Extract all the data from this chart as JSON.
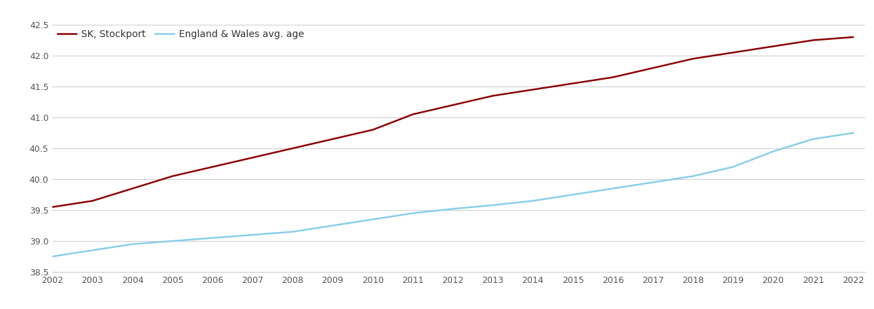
{
  "years": [
    2002,
    2003,
    2004,
    2005,
    2006,
    2007,
    2008,
    2009,
    2010,
    2011,
    2012,
    2013,
    2014,
    2015,
    2016,
    2017,
    2018,
    2019,
    2020,
    2021,
    2022
  ],
  "stockport": [
    39.55,
    39.65,
    39.85,
    40.05,
    40.2,
    40.35,
    40.5,
    40.65,
    40.8,
    41.05,
    41.2,
    41.35,
    41.45,
    41.55,
    41.65,
    41.8,
    41.95,
    42.05,
    42.15,
    42.25,
    42.3
  ],
  "england_wales": [
    38.75,
    38.85,
    38.95,
    39.0,
    39.05,
    39.1,
    39.15,
    39.25,
    39.35,
    39.45,
    39.52,
    39.58,
    39.65,
    39.75,
    39.85,
    39.95,
    40.05,
    40.2,
    40.45,
    40.65,
    40.75
  ],
  "stockport_color": "#8B0000",
  "england_wales_color": "#87CEEB",
  "legend_label_stockport": "SK, Stockport",
  "legend_label_ew": "England & Wales avg. age",
  "ylim": [
    38.5,
    42.5
  ],
  "yticks": [
    38.5,
    39.0,
    39.5,
    40.0,
    40.5,
    41.0,
    41.5,
    42.0,
    42.5
  ],
  "background_color": "#ffffff",
  "grid_color": "#d0d0d0",
  "line_width": 1.8,
  "figsize": [
    12.7,
    4.5
  ],
  "dpi": 100
}
